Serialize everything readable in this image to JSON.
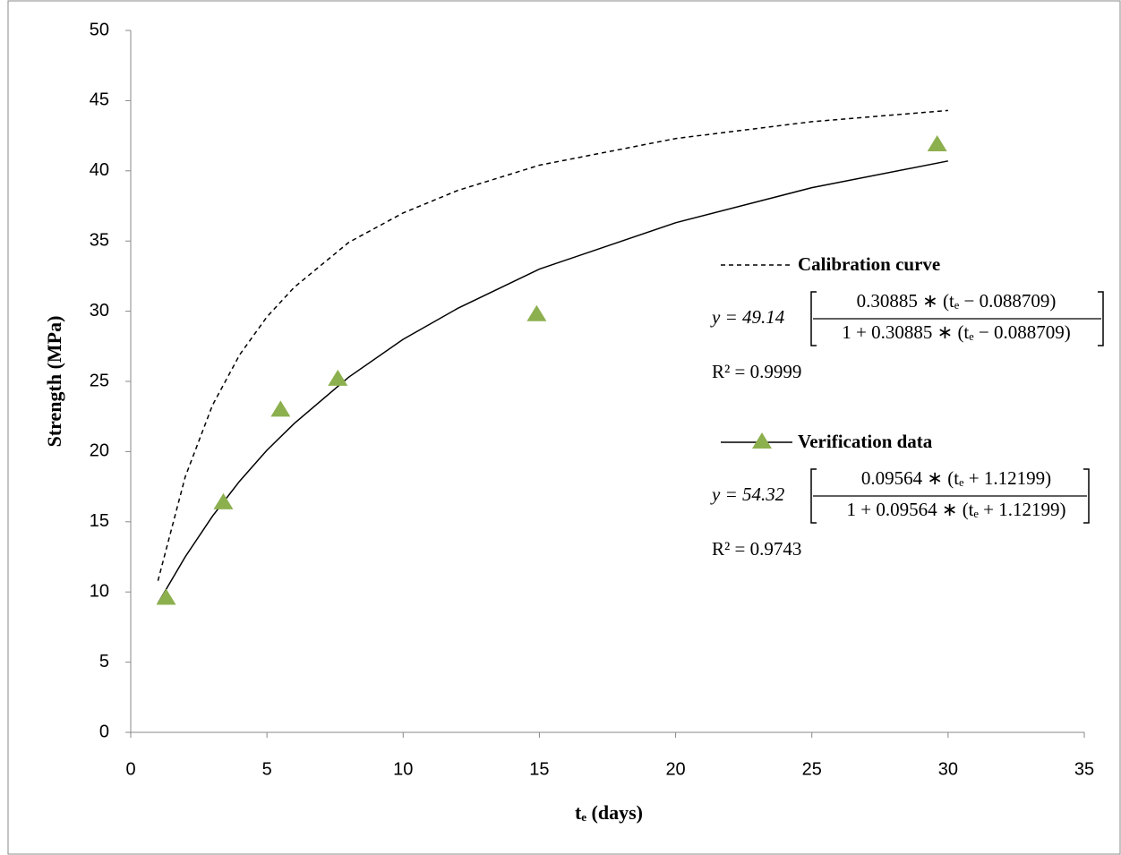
{
  "chart_data": {
    "type": "line",
    "xlabel": "tₑ (days)",
    "ylabel": "Strength (MPa)",
    "xlim": [
      0,
      35
    ],
    "xticks": [
      0,
      5,
      10,
      15,
      20,
      25,
      30,
      35
    ],
    "ylim": [
      0,
      50
    ],
    "yticks": [
      0,
      5,
      10,
      15,
      20,
      25,
      30,
      35,
      40,
      45,
      50
    ],
    "series": [
      {
        "name": "Calibration curve",
        "color": "#000000",
        "dash": true,
        "x": [
          1,
          2,
          3,
          4,
          5,
          6,
          8,
          10,
          12,
          15,
          20,
          25,
          30
        ],
        "values": [
          10.8,
          18.2,
          23.3,
          26.9,
          29.6,
          31.7,
          34.9,
          37.0,
          38.6,
          40.4,
          42.3,
          43.5,
          44.3
        ]
      },
      {
        "name": "Verification data",
        "color": "#000000",
        "marker_color": "#8db04f",
        "x": [
          1.3,
          3.4,
          5.5,
          7.6,
          14.9,
          29.6
        ],
        "values": [
          9.6,
          16.4,
          23.0,
          25.2,
          29.8,
          41.9
        ],
        "fit": {
          "x": [
            1,
            2,
            3,
            4,
            5,
            6,
            8,
            10,
            12,
            15,
            20,
            25,
            30
          ],
          "values": [
            9.2,
            12.5,
            15.4,
            17.9,
            20.1,
            22.0,
            25.3,
            28.0,
            30.2,
            33.0,
            36.3,
            38.8,
            40.7
          ]
        }
      }
    ],
    "equations": [
      {
        "lhs": "y = 49.14",
        "numerator": "0.30885 ∗ (tₑ − 0.088709)",
        "denominator": "1 + 0.30885 ∗ (tₑ − 0.088709)",
        "r2": "R² = 0.9999"
      },
      {
        "lhs": "y = 54.32",
        "numerator": "0.09564 ∗ (tₑ + 1.12199)",
        "denominator": "1 + 0.09564 ∗ (tₑ + 1.12199)",
        "r2": "R² = 0.9743"
      }
    ]
  }
}
